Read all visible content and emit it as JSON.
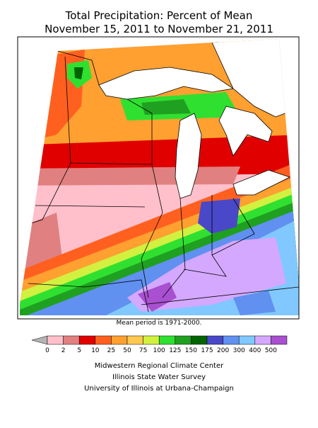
{
  "header": {
    "title": [
      "Total Precipitation: Percent of Mean",
      "November 15, 2011 to November 21, 2011"
    ]
  },
  "map": {
    "note": "Mean period is 1971-2000."
  },
  "legend": {
    "below_color": "#b4b4b4",
    "colors": [
      "#ffc0cb",
      "#e08080",
      "#e00000",
      "#ff6020",
      "#ffa030",
      "#ffc850",
      "#d2f040",
      "#30e030",
      "#20a020",
      "#006400",
      "#4848c8",
      "#6090f0",
      "#80c8ff",
      "#d4a8ff",
      "#a850d0"
    ],
    "labels": [
      0,
      2,
      5,
      10,
      25,
      50,
      75,
      100,
      125,
      150,
      175,
      200,
      300,
      400,
      500
    ]
  },
  "footer": {
    "credits": [
      "Midwestern Regional Climate Center",
      "Illinois State Water Survey",
      "University of Illinois at Urbana-Champaign"
    ]
  }
}
